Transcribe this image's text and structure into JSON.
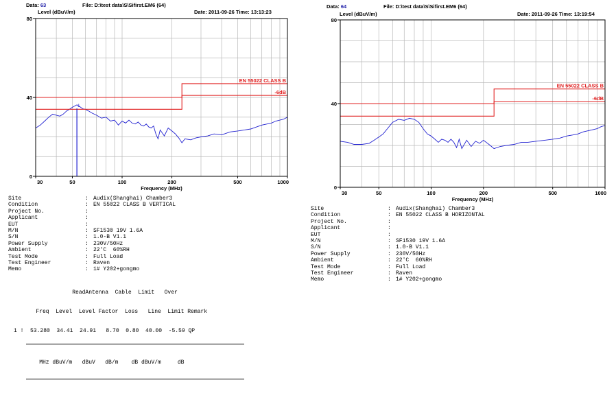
{
  "panels": [
    {
      "data_label": "Data:",
      "data_value": "63",
      "file_label": "File:",
      "file_value": "D:\\test data\\S\\Sifirst.EM6  (64)",
      "date_label": "Date:",
      "date_value": "2011-09-26",
      "time_label": "Time:",
      "time_value": "13:13:23",
      "info": [
        {
          "label": "Site",
          "value": "Audix(Shanghai) Chamber3"
        },
        {
          "label": "Condition",
          "value": "EN 55022 CLASS B VERTICAL"
        },
        {
          "label": "Project No.",
          "value": ""
        },
        {
          "label": "Applicant",
          "value": ""
        },
        {
          "label": "EUT",
          "value": ""
        },
        {
          "label": "M/N",
          "value": "SF1530 19V 1.6A"
        },
        {
          "label": "S/N",
          "value": "1.0-B V1.1"
        },
        {
          "label": "Power Supply",
          "value": "230V/50Hz"
        },
        {
          "label": "Ambient",
          "value": "22'C  60%RH"
        },
        {
          "label": "Test Mode",
          "value": "Full Load"
        },
        {
          "label": "Test Engineer",
          "value": "Raven"
        },
        {
          "label": "Memo",
          "value": "1# Y202+gongmo"
        }
      ],
      "table": {
        "header1": "              ReadAntenna  Cable  Limit   Over",
        "header2": "   Freq  Level  Level Factor  Loss   Line  Limit Remark",
        "units": "    MHz dBuV/m   dBuV   dB/m    dB dBuV/m     dB",
        "row": "1 !  53.280  34.41  24.91   8.70  0.80  40.00  -5.59 QP"
      }
    },
    {
      "data_label": "Data:",
      "data_value": "64",
      "file_label": "File:",
      "file_value": "D:\\test data\\S\\Sifirst.EM6  (64)",
      "date_label": "Date:",
      "date_value": "2011-09-26",
      "time_label": "Time:",
      "time_value": "13:19:54",
      "info": [
        {
          "label": "Site",
          "value": "Audix(Shanghai) Chamber3"
        },
        {
          "label": "Condition",
          "value": "EN 55022 CLASS B HORIZONTAL"
        },
        {
          "label": "Project No.",
          "value": ""
        },
        {
          "label": "Applicant",
          "value": ""
        },
        {
          "label": "EUT",
          "value": ""
        },
        {
          "label": "M/N",
          "value": "SF1530 19V 1.6A"
        },
        {
          "label": "S/N",
          "value": "1.0-B V1.1"
        },
        {
          "label": "Power Supply",
          "value": "230V/50Hz"
        },
        {
          "label": "Ambient",
          "value": "22'C  60%RH"
        },
        {
          "label": "Test Mode",
          "value": "Full Load"
        },
        {
          "label": "Test Engineer",
          "value": "Raven"
        },
        {
          "label": "Memo",
          "value": "1# Y202+gongmo"
        }
      ]
    }
  ],
  "chart_data": [
    {
      "type": "line",
      "ylabel": "Level (dBuV/m)",
      "xlabel": "Frequency (MHz)",
      "xscale": "log",
      "xlim": [
        30,
        1000
      ],
      "ylim": [
        0,
        80
      ],
      "y_ticks": [
        0,
        40,
        80
      ],
      "x_ticks": [
        30,
        50,
        100,
        200,
        500,
        1000
      ],
      "grid": true,
      "series": [
        {
          "name": "",
          "color": "#2020d0",
          "x": [
            30,
            32,
            34,
            36,
            38,
            40,
            42,
            44,
            46,
            48,
            50,
            52,
            53.28,
            55,
            58,
            60,
            63,
            66,
            70,
            75,
            80,
            85,
            90,
            95,
            100,
            105,
            110,
            115,
            120,
            125,
            130,
            135,
            140,
            145,
            150,
            155,
            160,
            165,
            170,
            180,
            190,
            200,
            210,
            220,
            230,
            240,
            260,
            280,
            300,
            330,
            360,
            400,
            450,
            500,
            550,
            600,
            650,
            700,
            750,
            800,
            850,
            900,
            950,
            1000
          ],
          "y": [
            24.5,
            26,
            28,
            30,
            31.5,
            31,
            30.5,
            31.5,
            33,
            34,
            35,
            35.8,
            36.2,
            35.5,
            34.2,
            34,
            33,
            32,
            31,
            29.5,
            30,
            28,
            28.5,
            26,
            28,
            27,
            28.5,
            27,
            26.5,
            27.5,
            26,
            25.5,
            26.5,
            25,
            24.5,
            25.5,
            21.5,
            19,
            23.5,
            20.5,
            24.5,
            23,
            21.5,
            19.5,
            17,
            19,
            18.5,
            19.5,
            20,
            20.5,
            21.5,
            21,
            22.5,
            23,
            23.5,
            24,
            25,
            26,
            26.5,
            27,
            28,
            28.5,
            29,
            30
          ]
        },
        {
          "name": "EN 55022 CLASS B",
          "color": "#e02020",
          "x": [
            30,
            230,
            230,
            1000
          ],
          "y": [
            40,
            40,
            47,
            47
          ]
        },
        {
          "name": "-6dB",
          "color": "#e02020",
          "x": [
            30,
            230,
            230,
            1000
          ],
          "y": [
            34,
            34,
            41,
            41
          ]
        }
      ],
      "markers": [
        {
          "label": "1",
          "x": 53.28,
          "y": 34.41
        }
      ]
    },
    {
      "type": "line",
      "ylabel": "Level (dBuV/m)",
      "xlabel": "Frequency (MHz)",
      "xscale": "log",
      "xlim": [
        30,
        1000
      ],
      "ylim": [
        0,
        80
      ],
      "y_ticks": [
        0,
        40,
        80
      ],
      "x_ticks": [
        30,
        50,
        100,
        200,
        500,
        1000
      ],
      "grid": true,
      "series": [
        {
          "name": "",
          "color": "#2020d0",
          "x": [
            30,
            33,
            36,
            40,
            44,
            47,
            50,
            53,
            56,
            60,
            65,
            70,
            75,
            80,
            85,
            90,
            95,
            100,
            105,
            110,
            115,
            120,
            125,
            130,
            135,
            140,
            145,
            150,
            160,
            170,
            180,
            190,
            200,
            215,
            230,
            250,
            270,
            300,
            330,
            360,
            400,
            450,
            500,
            550,
            600,
            650,
            700,
            750,
            800,
            850,
            900,
            950,
            1000
          ],
          "y": [
            22,
            21.5,
            20.5,
            20.5,
            21,
            22.5,
            24,
            25.5,
            28,
            31,
            32.5,
            32,
            33,
            32.5,
            31,
            28,
            25.5,
            24.5,
            23,
            21.5,
            23,
            22.5,
            21.5,
            23,
            21.5,
            19,
            23,
            18.5,
            22.5,
            19.5,
            22,
            21,
            22.5,
            20.5,
            18.5,
            19.5,
            20,
            20.5,
            21.5,
            21.5,
            22,
            22.5,
            23,
            23.5,
            24.5,
            25,
            25.5,
            26.5,
            27,
            27.5,
            28,
            29,
            29.5
          ]
        },
        {
          "name": "EN 55022 CLASS B",
          "color": "#e02020",
          "x": [
            30,
            230,
            230,
            1000
          ],
          "y": [
            40,
            40,
            47,
            47
          ]
        },
        {
          "name": "-6dB",
          "color": "#e02020",
          "x": [
            30,
            230,
            230,
            1000
          ],
          "y": [
            34,
            34,
            41,
            41
          ]
        }
      ],
      "markers": []
    }
  ]
}
